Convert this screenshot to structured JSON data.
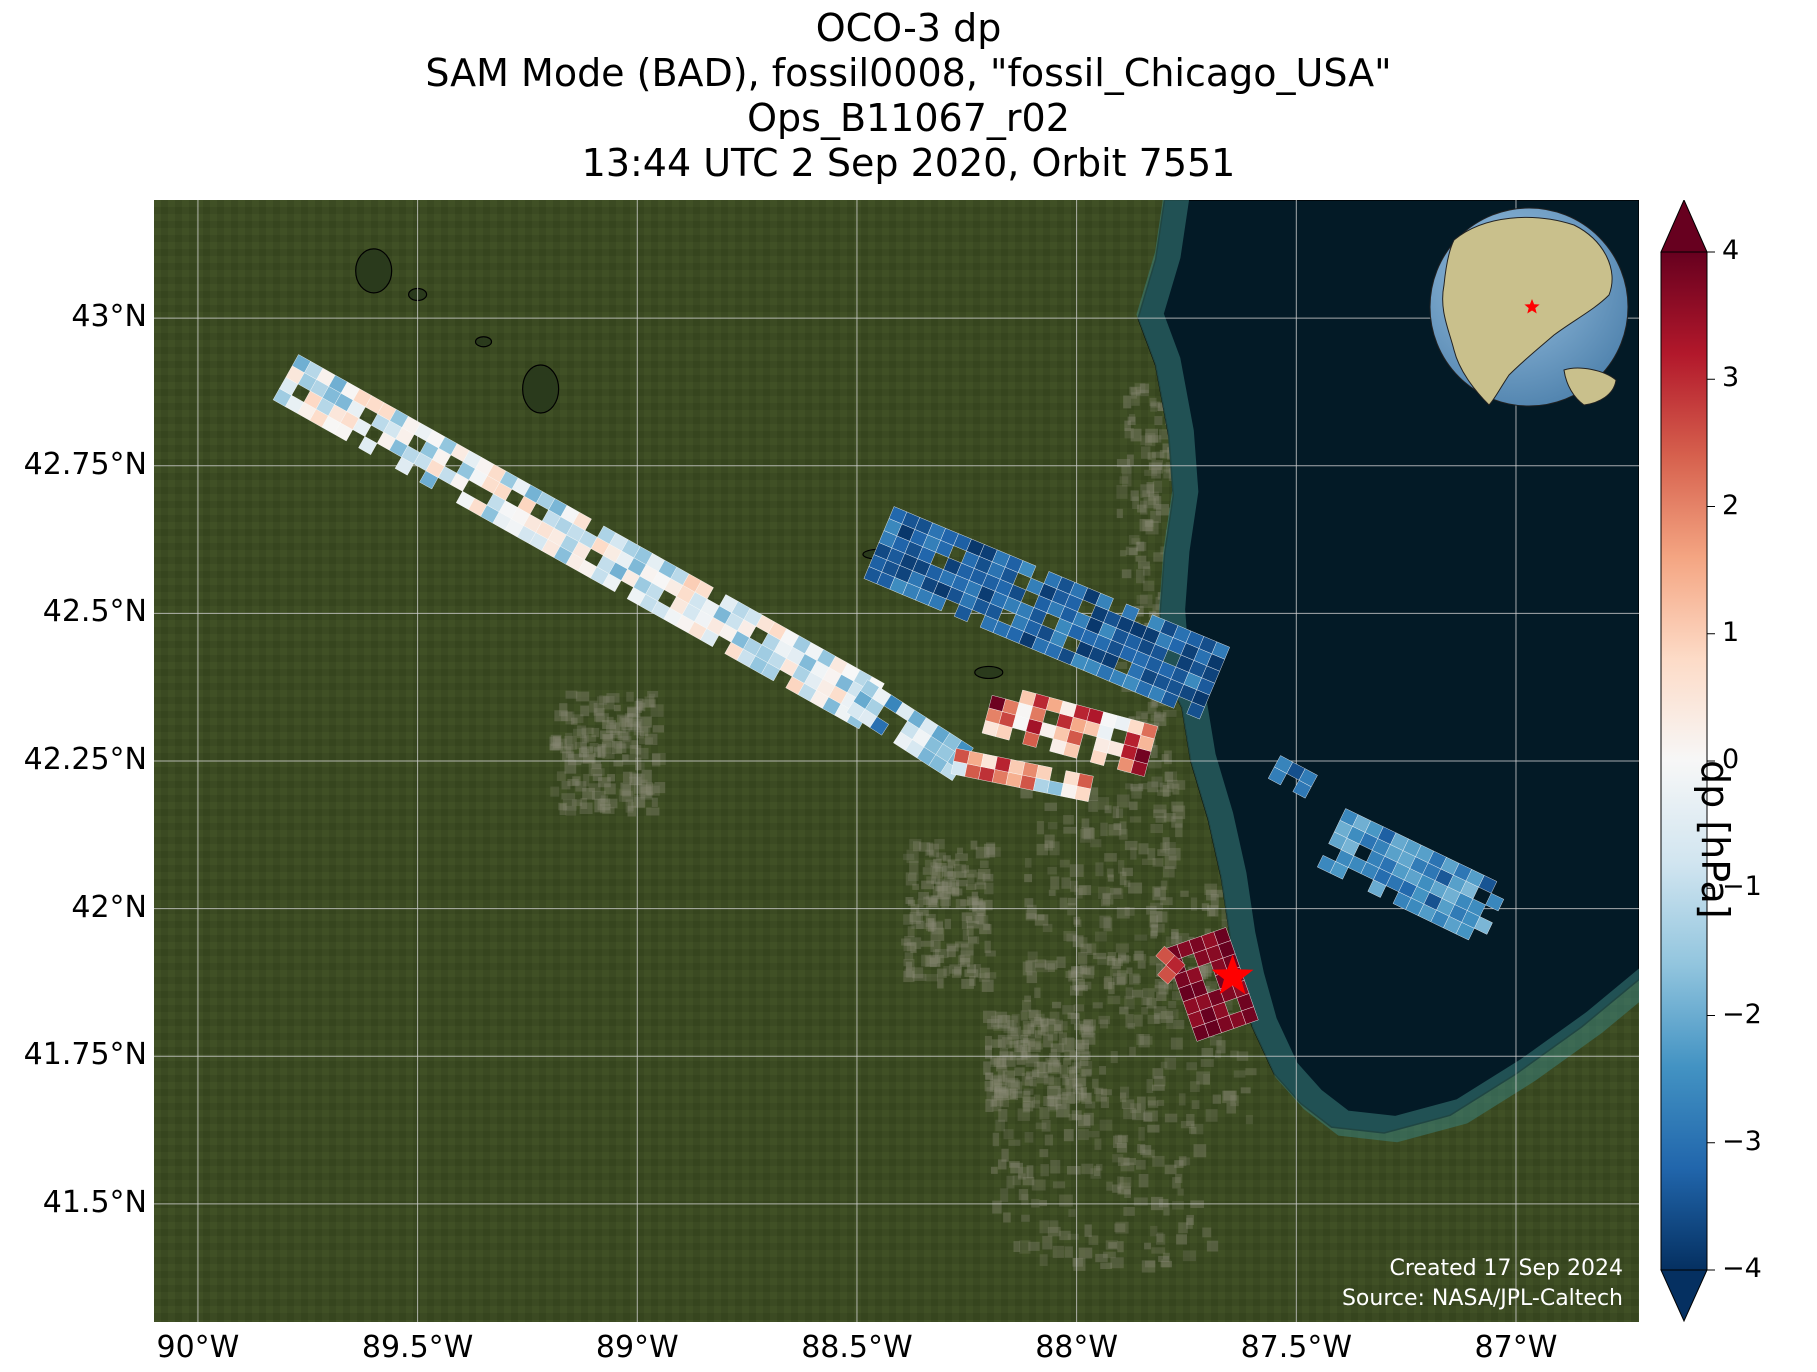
{
  "title_lines": [
    "OCO-3 dp",
    "SAM Mode (BAD), fossil0008, \"fossil_Chicago_USA\"",
    "Ops_B11067_r02",
    "13:44 UTC 2 Sep 2020, Orbit 7551"
  ],
  "map": {
    "lon_range": [
      -90.1,
      -86.72
    ],
    "lat_range": [
      41.3,
      43.2
    ],
    "lat_ticks": [
      {
        "value": 43.0,
        "label": "43°N"
      },
      {
        "value": 42.75,
        "label": "42.75°N"
      },
      {
        "value": 42.5,
        "label": "42.5°N"
      },
      {
        "value": 42.25,
        "label": "42.25°N"
      },
      {
        "value": 42.0,
        "label": "42°N"
      },
      {
        "value": 41.75,
        "label": "41.75°N"
      },
      {
        "value": 41.5,
        "label": "41.5°N"
      }
    ],
    "lon_ticks": [
      {
        "value": -90.0,
        "label": "90°W"
      },
      {
        "value": -89.5,
        "label": "89.5°W"
      },
      {
        "value": -89.0,
        "label": "89°W"
      },
      {
        "value": -88.5,
        "label": "88.5°W"
      },
      {
        "value": -88.0,
        "label": "88°W"
      },
      {
        "value": -87.5,
        "label": "87.5°W"
      },
      {
        "value": -87.0,
        "label": "87°W"
      }
    ],
    "target": {
      "lon": -87.645,
      "lat": 41.885,
      "color": "#ff0000"
    },
    "land_color": "#3b4a22",
    "lake_color": "#031a26",
    "shoreline": [
      [
        -87.8,
        43.2
      ],
      [
        -87.82,
        43.1
      ],
      [
        -87.86,
        43.0
      ],
      [
        -87.82,
        42.92
      ],
      [
        -87.79,
        42.8
      ],
      [
        -87.78,
        42.7
      ],
      [
        -87.8,
        42.6
      ],
      [
        -87.81,
        42.5
      ],
      [
        -87.8,
        42.4
      ],
      [
        -87.76,
        42.34
      ],
      [
        -87.74,
        42.25
      ],
      [
        -87.7,
        42.15
      ],
      [
        -87.67,
        42.05
      ],
      [
        -87.65,
        41.95
      ],
      [
        -87.63,
        41.88
      ],
      [
        -87.6,
        41.8
      ],
      [
        -87.55,
        41.72
      ],
      [
        -87.49,
        41.67
      ],
      [
        -87.42,
        41.63
      ],
      [
        -87.3,
        41.62
      ],
      [
        -87.15,
        41.65
      ],
      [
        -87.0,
        41.72
      ],
      [
        -86.85,
        41.8
      ],
      [
        -86.72,
        41.88
      ]
    ],
    "swaths": [
      {
        "lon0": -89.8,
        "lat0": 42.9,
        "lon1": -88.46,
        "lat1": 42.34,
        "width": 0.1,
        "mean": -0.5,
        "spread": 1.5
      },
      {
        "lon0": -88.45,
        "lat0": 42.62,
        "lon1": -87.68,
        "lat1": 42.38,
        "width": 0.14,
        "mean": -3.2,
        "spread": 0.7
      },
      {
        "lon0": -88.5,
        "lat0": 42.36,
        "lon1": -88.25,
        "lat1": 42.24,
        "width": 0.08,
        "mean": -1.6,
        "spread": 1.5
      },
      {
        "lon0": -88.2,
        "lat0": 42.34,
        "lon1": -87.8,
        "lat1": 42.26,
        "width": 0.09,
        "mean": 1.8,
        "spread": 2.2
      },
      {
        "lon0": -88.28,
        "lat0": 42.25,
        "lon1": -87.95,
        "lat1": 42.2,
        "width": 0.06,
        "mean": 0.8,
        "spread": 2.5
      },
      {
        "lon0": -87.55,
        "lat0": 42.24,
        "lon1": -87.45,
        "lat1": 42.2,
        "width": 0.06,
        "mean": -3.0,
        "spread": 1.0
      },
      {
        "lon0": -87.42,
        "lat0": 42.12,
        "lon1": -87.03,
        "lat1": 41.98,
        "width": 0.12,
        "mean": -2.6,
        "spread": 0.9
      },
      {
        "lon0": -87.73,
        "lat0": 41.95,
        "lon1": -87.65,
        "lat1": 41.78,
        "width": 0.12,
        "mean": 3.8,
        "spread": 0.3
      },
      {
        "lon0": -87.82,
        "lat0": 41.92,
        "lon1": -87.76,
        "lat1": 41.88,
        "width": 0.05,
        "mean": 2.5,
        "spread": 1.0
      }
    ]
  },
  "colorbar": {
    "label": "dp [hPa]",
    "min": -4,
    "max": 4,
    "ticks": [
      {
        "value": 4,
        "label": "4"
      },
      {
        "value": 3,
        "label": "3"
      },
      {
        "value": 2,
        "label": "2"
      },
      {
        "value": 1,
        "label": "1"
      },
      {
        "value": 0,
        "label": "0"
      },
      {
        "value": -1,
        "label": "−1"
      },
      {
        "value": -2,
        "label": "−2"
      },
      {
        "value": -3,
        "label": "−3"
      },
      {
        "value": -4,
        "label": "−4"
      }
    ],
    "colors": [
      "#053061",
      "#2166ac",
      "#4393c3",
      "#92c5de",
      "#d1e5f0",
      "#f7f7f7",
      "#fddbc7",
      "#f4a582",
      "#d6604d",
      "#b2182b",
      "#67001f"
    ]
  },
  "credits": {
    "created": "Created 17 Sep 2024",
    "source": "Source: NASA/JPL-Caltech"
  },
  "inset_globe": {
    "ocean_color": "#6a9cc4",
    "land_color": "#c9c08c",
    "marker_color": "#ff0000"
  }
}
